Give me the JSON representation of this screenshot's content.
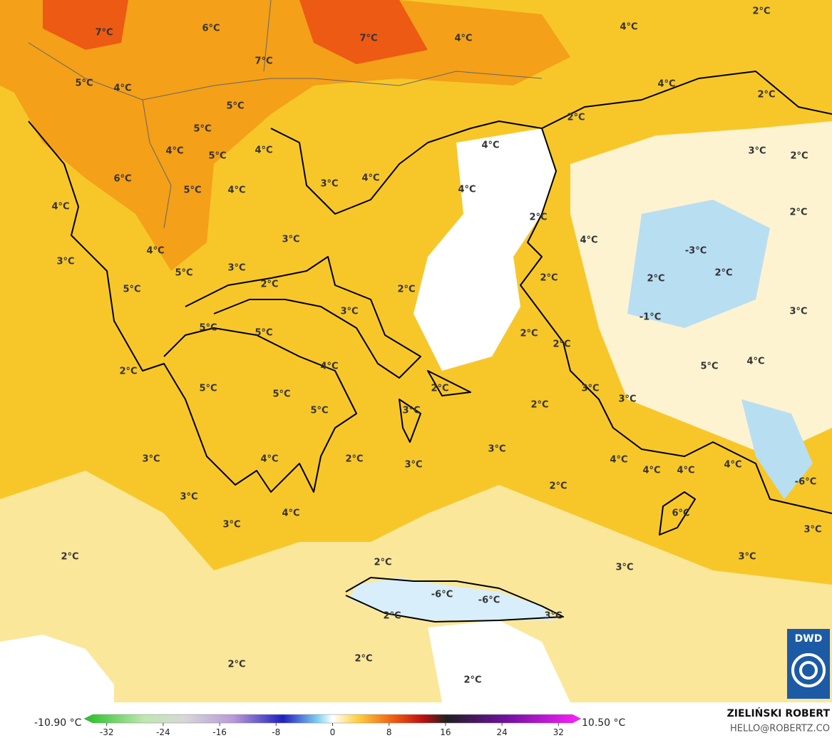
{
  "map": {
    "labels": [
      "2°C",
      "4°C",
      "7°C",
      "6°C",
      "7°C",
      "4°C",
      "7°C",
      "5°C",
      "4°C",
      "4°C",
      "2°C",
      "5°C",
      "2°C",
      "5°C",
      "4°C",
      "3°C",
      "2°C",
      "4°C",
      "5°C",
      "4°C",
      "6°C",
      "3°C",
      "4°C",
      "5°C",
      "4°C",
      "4°C",
      "4°C",
      "2°C",
      "2°C",
      "3°C",
      "4°C",
      "4°C",
      "-3°C",
      "3°C",
      "5°C",
      "3°C",
      "2°C",
      "2°C",
      "2°C",
      "2°C",
      "2°C",
      "5°C",
      "3°C",
      "-1°C",
      "3°C",
      "2°C",
      "5°C",
      "5°C",
      "2°C",
      "4°C",
      "5°C",
      "4°C",
      "2°C",
      "3°C",
      "2°C",
      "5°C",
      "5°C",
      "3°C",
      "2°C",
      "5°C",
      "3°C",
      "3°C",
      "2°C",
      "3°C",
      "4°C",
      "3°C",
      "4°C",
      "4°C",
      "4°C",
      "4°C",
      "-6°C",
      "2°C",
      "3°C",
      "4°C",
      "6°C",
      "3°C",
      "3°C",
      "2°C",
      "3°C",
      "2°C",
      "3°C",
      "-6°C",
      "-6°C",
      "2°C",
      "3°C",
      "2°C",
      "2°C",
      "2°C"
    ]
  },
  "colorbar": {
    "min_label": "-10.90 °C",
    "max_label": "10.50 °C",
    "range": [
      -35.2,
      35.2
    ],
    "ticks": [
      -32,
      -24,
      -16,
      -8,
      0,
      8,
      16,
      24,
      32
    ]
  },
  "credits": {
    "author": "ZIELIŃSKI ROBERT",
    "email": "HELLO@ROBERTZ.CO"
  },
  "logo": "DWD"
}
